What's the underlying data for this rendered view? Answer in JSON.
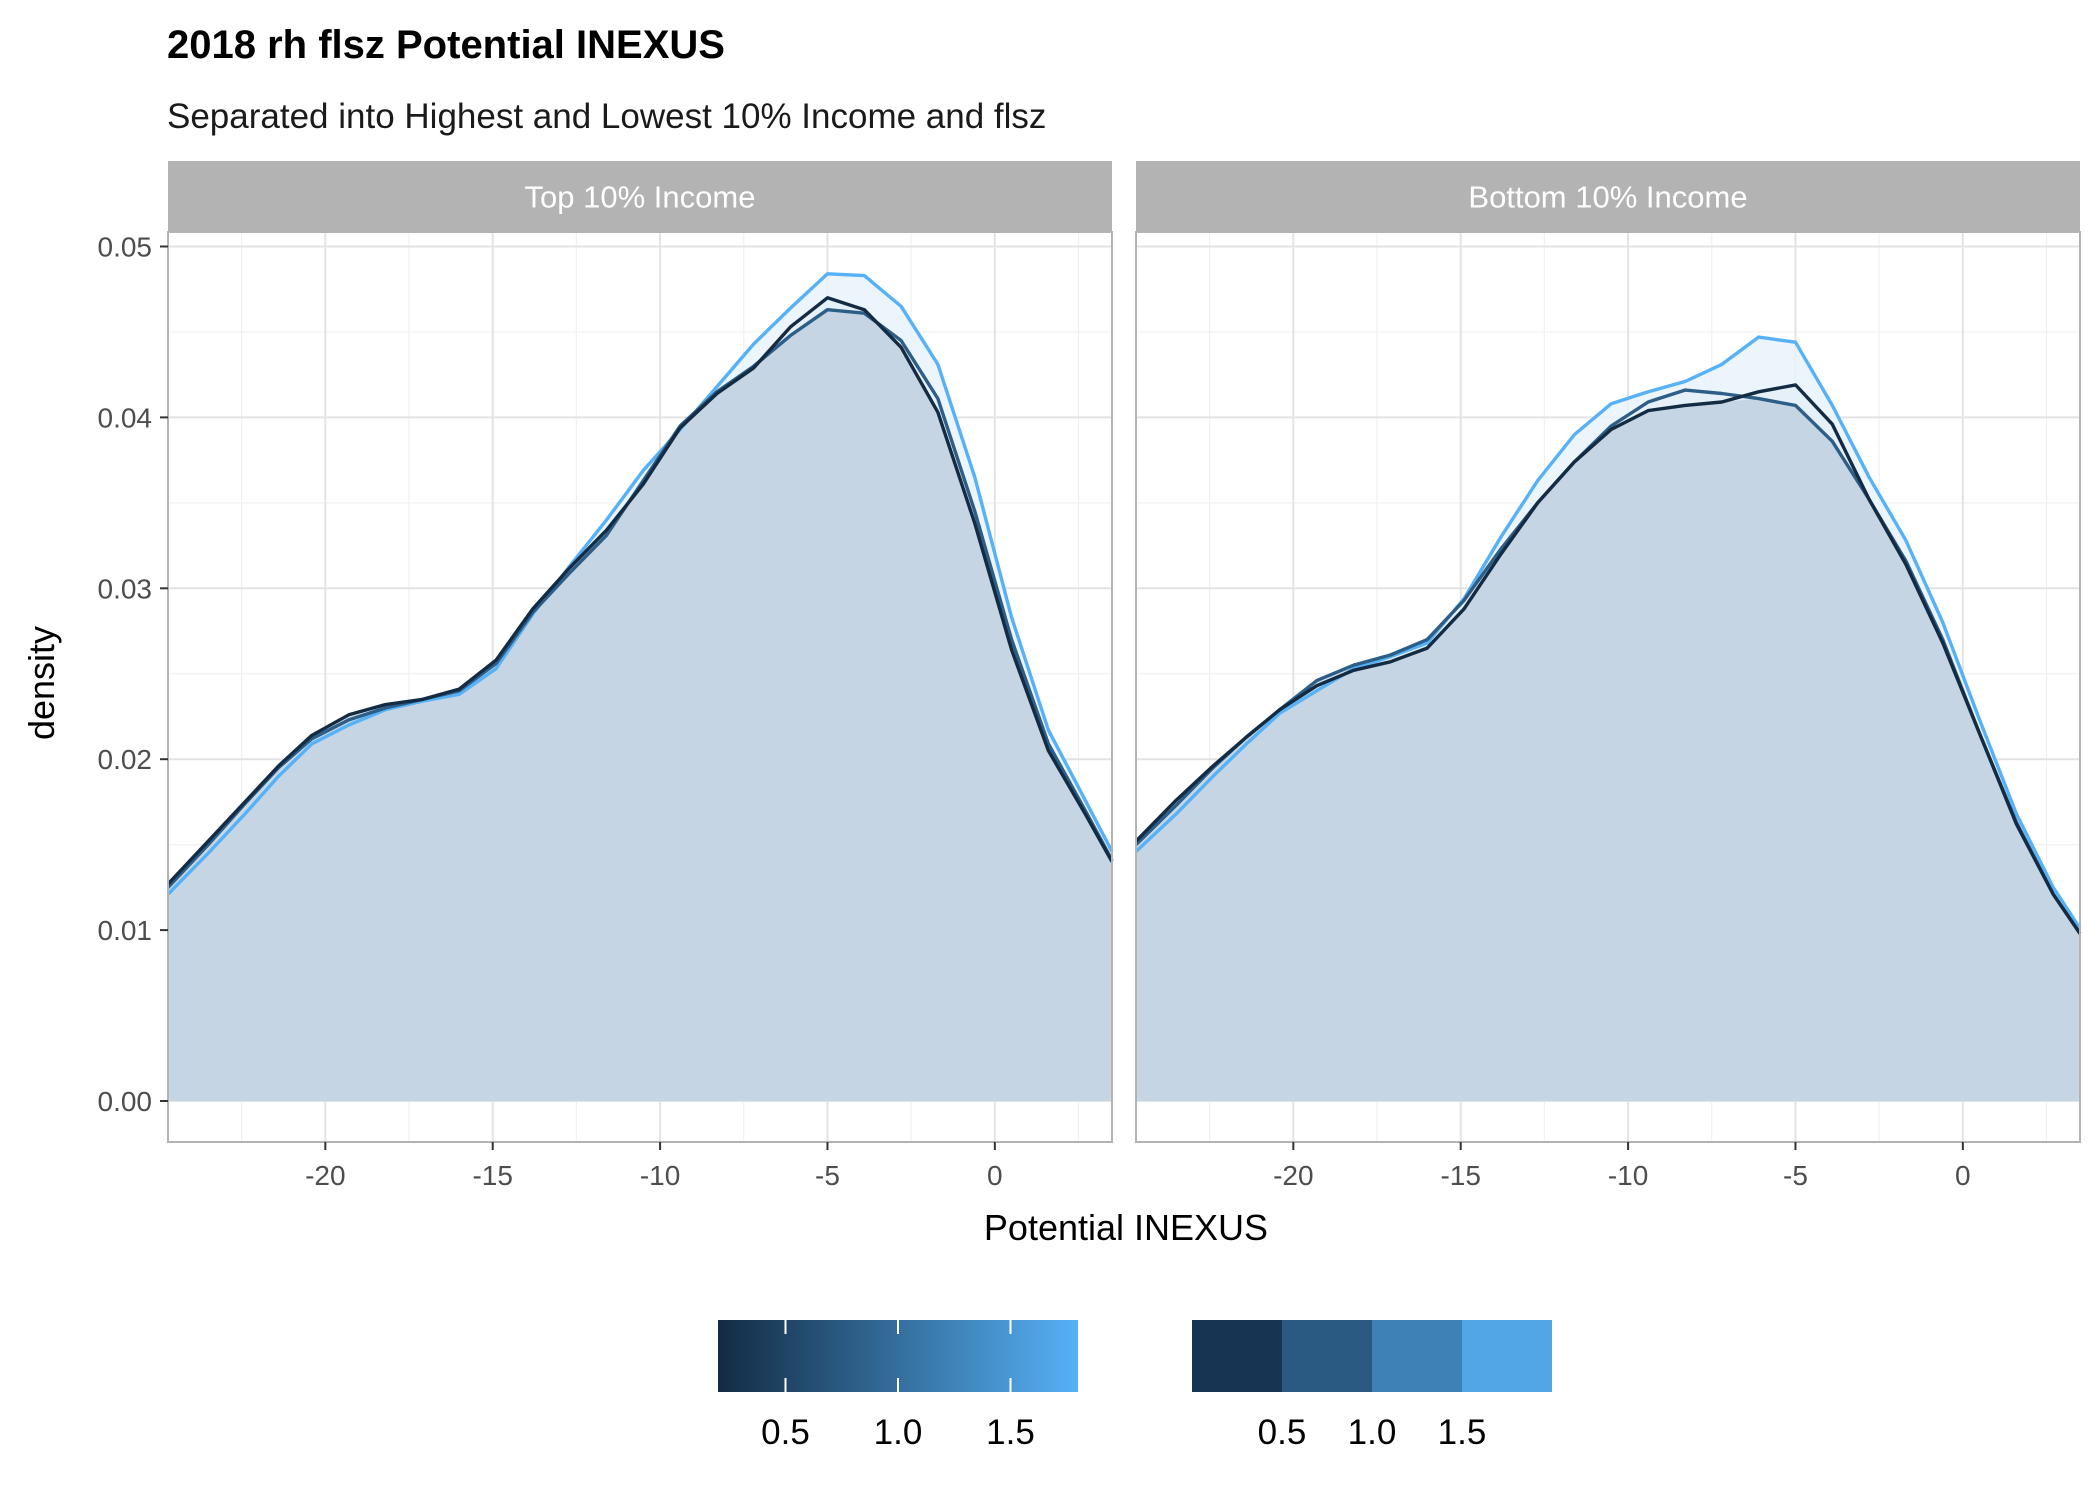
{
  "chart_data": {
    "type": "area",
    "title": "2018 rh flsz Potential INEXUS",
    "subtitle": "Separated into Highest and Lowest 10% Income and flsz",
    "xlabel": "Potential INEXUS",
    "ylabel": "density",
    "xlim": [
      -24.7,
      3.5
    ],
    "ylim": [
      0,
      0.05
    ],
    "x_ticks": [
      -20,
      -15,
      -10,
      -5,
      0
    ],
    "x_tick_labels": [
      "-20",
      "-15",
      "-10",
      "-5",
      "0"
    ],
    "y_ticks": [
      0,
      0.01,
      0.02,
      0.03,
      0.04,
      0.05
    ],
    "y_tick_labels": [
      "0.00",
      "0.01",
      "0.02",
      "0.03",
      "0.04",
      "0.05"
    ],
    "grid": true,
    "legend_position": "bottom",
    "x": [
      -24.7,
      -23.5,
      -22.4,
      -21.4,
      -20.4,
      -19.3,
      -18.2,
      -17.1,
      -16.0,
      -14.9,
      -13.8,
      -12.7,
      -11.6,
      -10.5,
      -9.4,
      -8.3,
      -7.2,
      -6.1,
      -5.0,
      -3.9,
      -2.8,
      -1.7,
      -0.6,
      0.5,
      1.6,
      2.7,
      3.5
    ],
    "series_colors": [
      "#132b43",
      "#2c5e88",
      "#56b1f7"
    ],
    "facets": [
      {
        "label": "Top 10% Income",
        "series": [
          {
            "values": [
              0.0127,
              0.0152,
              0.0175,
              0.0196,
              0.0214,
              0.0226,
              0.0232,
              0.0235,
              0.0241,
              0.0258,
              0.0288,
              0.0312,
              0.0334,
              0.0361,
              0.0394,
              0.0414,
              0.0429,
              0.0453,
              0.047,
              0.0463,
              0.0441,
              0.0403,
              0.0338,
              0.0264,
              0.0205,
              0.0168,
              0.014
            ]
          },
          {
            "values": [
              0.0125,
              0.015,
              0.0174,
              0.0195,
              0.0212,
              0.0223,
              0.023,
              0.0235,
              0.024,
              0.0256,
              0.0286,
              0.0309,
              0.0331,
              0.0363,
              0.0395,
              0.0415,
              0.043,
              0.0448,
              0.0463,
              0.0461,
              0.0445,
              0.0411,
              0.0345,
              0.027,
              0.0209,
              0.017,
              0.0141
            ]
          },
          {
            "values": [
              0.0121,
              0.0145,
              0.0168,
              0.019,
              0.0209,
              0.022,
              0.0229,
              0.0234,
              0.0238,
              0.0253,
              0.0285,
              0.0313,
              0.034,
              0.0369,
              0.0393,
              0.0418,
              0.0443,
              0.0464,
              0.0484,
              0.0483,
              0.0465,
              0.0431,
              0.0365,
              0.0283,
              0.0217,
              0.0176,
              0.0146
            ]
          }
        ]
      },
      {
        "label": "Bottom 10% Income",
        "series": [
          {
            "values": [
              0.0152,
              0.0176,
              0.0196,
              0.0213,
              0.0229,
              0.0243,
              0.0252,
              0.0257,
              0.0265,
              0.0288,
              0.032,
              0.035,
              0.0374,
              0.0393,
              0.0404,
              0.0407,
              0.0409,
              0.0415,
              0.0419,
              0.0396,
              0.0352,
              0.0314,
              0.0268,
              0.0215,
              0.0162,
              0.0121,
              0.0098
            ]
          },
          {
            "values": [
              0.015,
              0.0173,
              0.0195,
              0.0213,
              0.0229,
              0.0246,
              0.0255,
              0.0261,
              0.027,
              0.0293,
              0.0323,
              0.035,
              0.0374,
              0.0395,
              0.0409,
              0.0416,
              0.0414,
              0.0411,
              0.0407,
              0.0386,
              0.0352,
              0.0316,
              0.027,
              0.0215,
              0.0163,
              0.0121,
              0.0098
            ]
          },
          {
            "values": [
              0.0146,
              0.0168,
              0.019,
              0.0209,
              0.0227,
              0.024,
              0.0253,
              0.026,
              0.0268,
              0.0294,
              0.033,
              0.0363,
              0.039,
              0.0408,
              0.0415,
              0.0421,
              0.0431,
              0.0447,
              0.0444,
              0.0407,
              0.0365,
              0.0328,
              0.028,
              0.0223,
              0.0168,
              0.0125,
              0.0101
            ]
          }
        ]
      }
    ],
    "legends": [
      {
        "kind": "colorbar",
        "labels": [
          "0.5",
          "1.0",
          "1.5"
        ],
        "values": [
          0.5,
          1.0,
          1.5
        ],
        "range": [
          0.2,
          1.8
        ],
        "colors": [
          "#132b43",
          "#56b1f7"
        ]
      },
      {
        "kind": "steps",
        "labels": [
          "0.5",
          "1.0",
          "1.5"
        ],
        "colors": [
          "#173552",
          "#2a5a81",
          "#3e81b7",
          "#52a6e6"
        ]
      }
    ]
  }
}
